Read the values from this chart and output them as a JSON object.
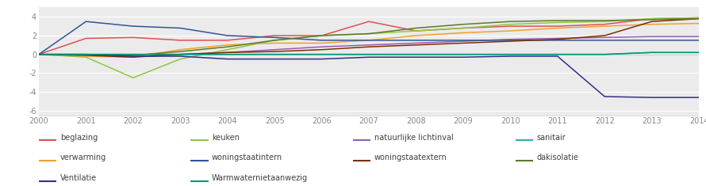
{
  "years": [
    2000,
    2001,
    2002,
    2003,
    2004,
    2005,
    2006,
    2007,
    2008,
    2009,
    2010,
    2011,
    2012,
    2013,
    2014
  ],
  "series": {
    "beglazing": {
      "color": "#e05050",
      "values": [
        0,
        1.7,
        1.8,
        1.5,
        1.5,
        2.0,
        2.0,
        3.5,
        2.5,
        2.8,
        3.0,
        3.0,
        3.2,
        3.8,
        3.9
      ]
    },
    "keuken": {
      "color": "#8dc843",
      "values": [
        0,
        -0.3,
        -2.5,
        -0.5,
        0.5,
        1.5,
        2.0,
        2.2,
        2.5,
        2.8,
        3.2,
        3.4,
        3.5,
        3.8,
        3.9
      ]
    },
    "natuurlijke lichtinval": {
      "color": "#9b59b6",
      "values": [
        0,
        -0.1,
        -0.1,
        0.0,
        0.2,
        0.5,
        0.8,
        1.0,
        1.2,
        1.4,
        1.6,
        1.7,
        1.8,
        1.9,
        1.9
      ]
    },
    "sanitair": {
      "color": "#28b0b0",
      "values": [
        0,
        0,
        0,
        0,
        0,
        0,
        0,
        0,
        0,
        0,
        0,
        0,
        0,
        0.2,
        0.2
      ]
    },
    "verwarming": {
      "color": "#f0a030",
      "values": [
        0,
        -0.2,
        -0.3,
        0.5,
        1.0,
        1.2,
        1.2,
        1.5,
        2.0,
        2.3,
        2.5,
        2.8,
        3.0,
        3.2,
        3.3
      ]
    },
    "woningstaatintern": {
      "color": "#2f5597",
      "values": [
        0,
        3.5,
        3.0,
        2.8,
        2.0,
        1.8,
        1.5,
        1.5,
        1.5,
        1.5,
        1.5,
        1.5,
        1.5,
        1.5,
        1.5
      ]
    },
    "woningstaatextern": {
      "color": "#7b3000",
      "values": [
        0,
        -0.1,
        -0.3,
        0.0,
        0.2,
        0.3,
        0.5,
        0.8,
        1.0,
        1.2,
        1.4,
        1.6,
        2.0,
        3.5,
        3.8
      ]
    },
    "dakisolatie": {
      "color": "#5c7a29",
      "values": [
        0,
        0,
        -0.1,
        0.3,
        0.8,
        1.5,
        2.0,
        2.2,
        2.8,
        3.2,
        3.5,
        3.6,
        3.6,
        3.7,
        3.8
      ]
    },
    "Ventilatie": {
      "color": "#30308a",
      "values": [
        0,
        0,
        -0.2,
        -0.2,
        -0.5,
        -0.5,
        -0.5,
        -0.3,
        -0.3,
        -0.3,
        -0.2,
        -0.2,
        -4.5,
        -4.6,
        -4.6
      ]
    },
    "Warmwaternietaanwezig": {
      "color": "#009975",
      "values": [
        0,
        0,
        0,
        0,
        0,
        0,
        0,
        0,
        0,
        0,
        0,
        0,
        0,
        0.2,
        0.2
      ]
    }
  },
  "ylim": [
    -6.5,
    5
  ],
  "yticks": [
    -6,
    -4,
    -2,
    0,
    2,
    4
  ],
  "xlim": [
    2000,
    2014
  ],
  "plot_background": "#ebebeb",
  "fig_background": "#ffffff",
  "legend_rows": [
    [
      "beglazing",
      "keuken",
      "natuurlijke lichtinval",
      "sanitair"
    ],
    [
      "verwarming",
      "woningstaatintern",
      "woningstaatextern",
      "dakisolatie"
    ],
    [
      "Ventilatie",
      "Warmwaternietaanwezig"
    ]
  ]
}
